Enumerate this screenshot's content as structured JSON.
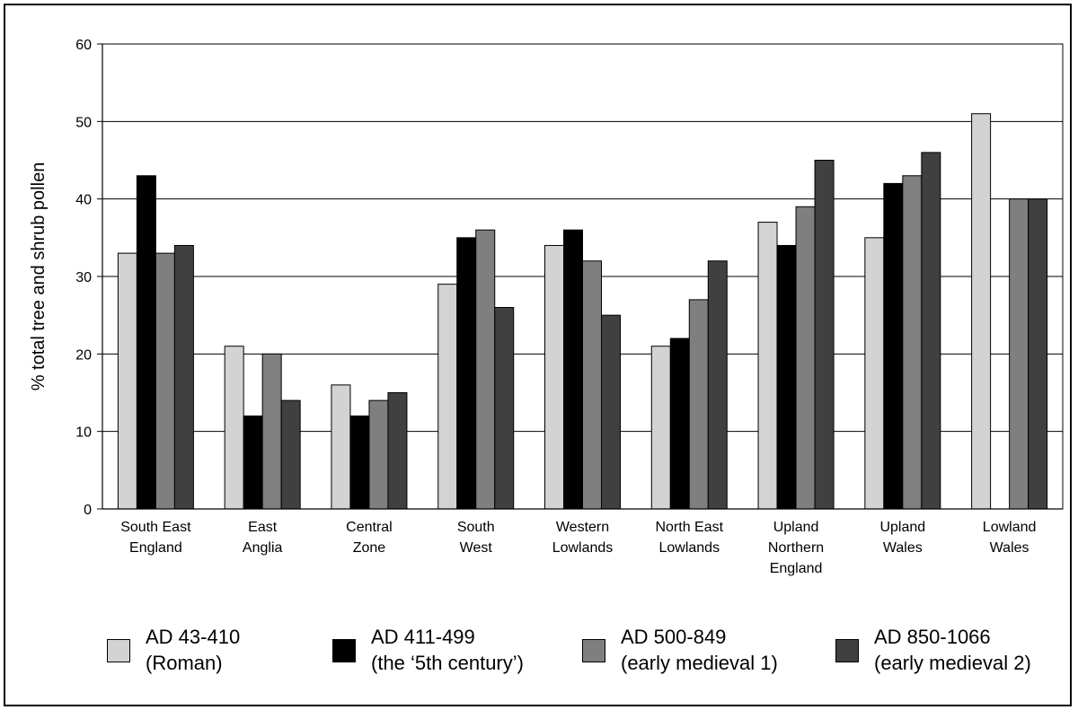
{
  "chart_data": {
    "type": "bar",
    "ylabel": "% total tree and shrub pollen",
    "ylim": [
      0,
      60
    ],
    "yticks": [
      0,
      10,
      20,
      30,
      40,
      50,
      60
    ],
    "grid": true,
    "legend_position": "bottom",
    "categories": [
      [
        "South East",
        "England"
      ],
      [
        "East",
        "Anglia"
      ],
      [
        "Central",
        "Zone"
      ],
      [
        "South",
        "West"
      ],
      [
        "Western",
        "Lowlands"
      ],
      [
        "North East",
        "Lowlands"
      ],
      [
        "Upland",
        "Northern",
        "England"
      ],
      [
        "Upland",
        "Wales"
      ],
      [
        "Lowland",
        "Wales"
      ]
    ],
    "series": [
      {
        "name": "AD 43-410 (Roman)",
        "label_lines": [
          "AD 43-410",
          "(Roman)"
        ],
        "color": "#d3d3d3",
        "values": [
          33,
          21,
          16,
          29,
          34,
          21,
          37,
          35,
          51
        ]
      },
      {
        "name": "AD 411-499 (the ‘5th century’)",
        "label_lines": [
          "AD 411-499",
          "(the ‘5th century’)"
        ],
        "color": "#000000",
        "values": [
          43,
          12,
          12,
          35,
          36,
          22,
          34,
          42,
          null
        ]
      },
      {
        "name": "AD 500-849 (early medieval 1)",
        "label_lines": [
          "AD 500-849",
          "(early medieval 1)"
        ],
        "color": "#7f7f7f",
        "values": [
          33,
          20,
          14,
          36,
          32,
          27,
          39,
          43,
          40
        ]
      },
      {
        "name": "AD 850-1066 (early medieval 2)",
        "label_lines": [
          "AD 850-1066",
          "(early medieval 2)"
        ],
        "color": "#404040",
        "values": [
          34,
          14,
          15,
          26,
          25,
          32,
          45,
          46,
          40
        ]
      }
    ]
  }
}
